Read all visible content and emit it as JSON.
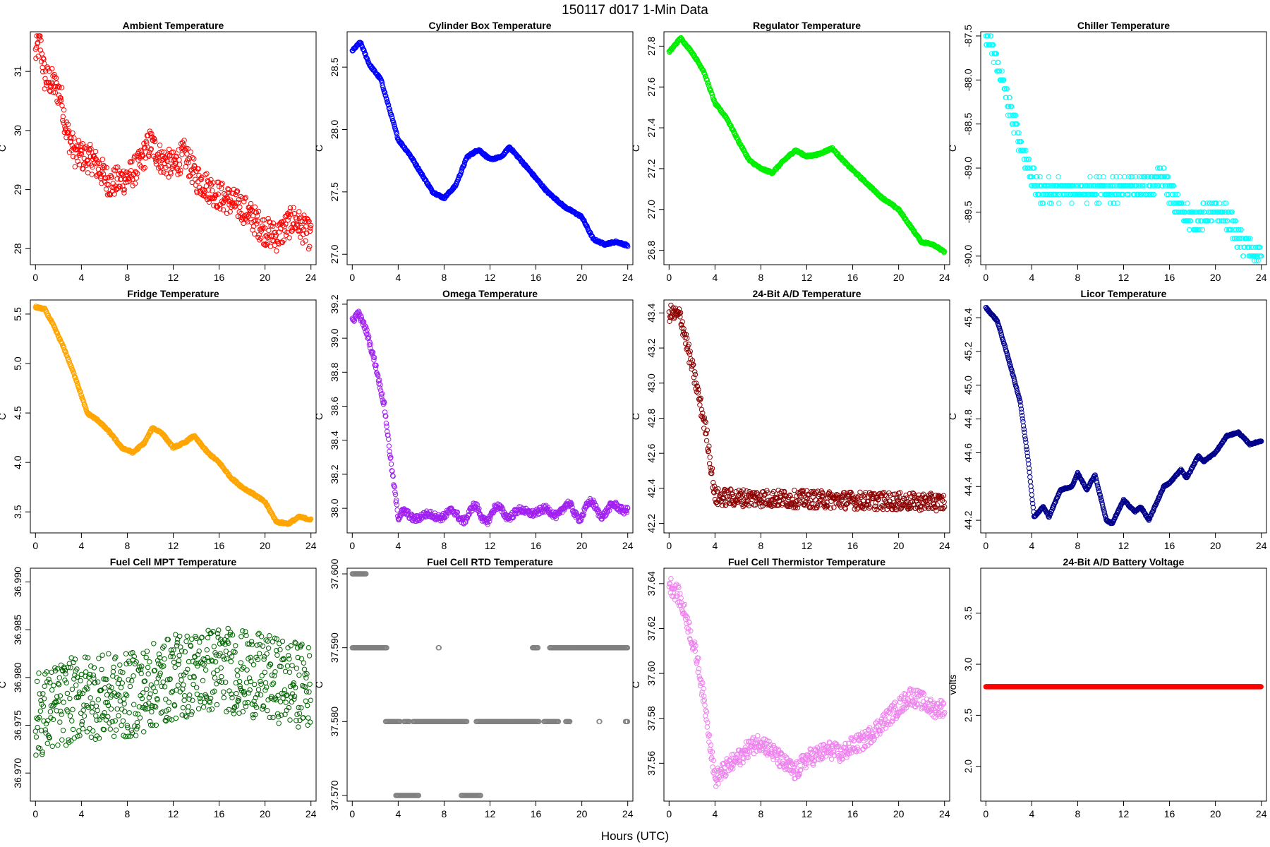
{
  "figure": {
    "title": "150117   d017   1-Min Data",
    "xlabel": "Hours (UTC)"
  },
  "chart_data": [
    {
      "type": "scatter",
      "title": "Ambient Temperature",
      "ylabel": "C",
      "color": "#ff0000",
      "xlim": [
        0,
        24
      ],
      "ylim": [
        27.8,
        31.6
      ],
      "xticks": [
        0,
        4,
        8,
        12,
        16,
        20,
        24
      ],
      "yticks": [
        28,
        29,
        30,
        31
      ],
      "ytick_labels": [
        "28",
        "29",
        "30",
        "31"
      ],
      "noise": 0.25,
      "series": [
        [
          0,
          31.3
        ],
        [
          0.4,
          31.5
        ],
        [
          0.8,
          30.9
        ],
        [
          1.5,
          30.8
        ],
        [
          2.2,
          30.6
        ],
        [
          2.7,
          30.0
        ],
        [
          3.5,
          29.6
        ],
        [
          5,
          29.5
        ],
        [
          6.5,
          29.1
        ],
        [
          8,
          29.2
        ],
        [
          9,
          29.4
        ],
        [
          10,
          29.8
        ],
        [
          11,
          29.5
        ],
        [
          12,
          29.4
        ],
        [
          13,
          29.6
        ],
        [
          14,
          29.2
        ],
        [
          16,
          28.9
        ],
        [
          18,
          28.7
        ],
        [
          20,
          28.3
        ],
        [
          21,
          28.2
        ],
        [
          22.5,
          28.5
        ],
        [
          24,
          28.2
        ]
      ]
    },
    {
      "type": "scatter",
      "title": "Cylinder Box Temperature",
      "ylabel": "C",
      "color": "#0000ff",
      "xlim": [
        0,
        24
      ],
      "ylim": [
        26.95,
        28.75
      ],
      "xticks": [
        0,
        4,
        8,
        12,
        16,
        20,
        24
      ],
      "yticks": [
        27.0,
        27.5,
        28.0,
        28.5
      ],
      "ytick_labels": [
        "27.0",
        "27.5",
        "28.0",
        "28.5"
      ],
      "noise": 0.008,
      "series": [
        [
          0,
          28.63
        ],
        [
          0.7,
          28.7
        ],
        [
          1.5,
          28.52
        ],
        [
          2.5,
          28.4
        ],
        [
          4,
          27.92
        ],
        [
          5,
          27.8
        ],
        [
          6,
          27.65
        ],
        [
          7,
          27.5
        ],
        [
          8,
          27.45
        ],
        [
          9,
          27.55
        ],
        [
          10,
          27.78
        ],
        [
          11,
          27.84
        ],
        [
          12,
          27.76
        ],
        [
          13,
          27.78
        ],
        [
          13.7,
          27.86
        ],
        [
          15,
          27.72
        ],
        [
          17,
          27.5
        ],
        [
          18.5,
          27.38
        ],
        [
          20,
          27.3
        ],
        [
          21,
          27.12
        ],
        [
          22,
          27.08
        ],
        [
          23,
          27.1
        ],
        [
          24,
          27.07
        ]
      ]
    },
    {
      "type": "scatter",
      "title": "Regulator Temperature",
      "ylabel": "C",
      "color": "#00ee00",
      "xlim": [
        0,
        24
      ],
      "ylim": [
        26.75,
        27.85
      ],
      "xticks": [
        0,
        4,
        8,
        12,
        16,
        20,
        24
      ],
      "yticks": [
        26.8,
        27.0,
        27.2,
        27.4,
        27.6,
        27.8
      ],
      "ytick_labels": [
        "26.8",
        "27.0",
        "27.2",
        "27.4",
        "27.6",
        "27.8"
      ],
      "noise": 0.005,
      "series": [
        [
          0,
          27.77
        ],
        [
          1,
          27.84
        ],
        [
          2,
          27.77
        ],
        [
          3,
          27.68
        ],
        [
          4,
          27.52
        ],
        [
          5,
          27.45
        ],
        [
          6,
          27.34
        ],
        [
          7,
          27.24
        ],
        [
          8,
          27.2
        ],
        [
          9,
          27.18
        ],
        [
          10,
          27.24
        ],
        [
          11,
          27.29
        ],
        [
          12,
          27.26
        ],
        [
          13,
          27.27
        ],
        [
          14.2,
          27.3
        ],
        [
          15.5,
          27.22
        ],
        [
          17,
          27.14
        ],
        [
          18.5,
          27.06
        ],
        [
          20,
          27.0
        ],
        [
          21,
          26.92
        ],
        [
          22,
          26.84
        ],
        [
          23,
          26.83
        ],
        [
          24,
          26.79
        ]
      ]
    },
    {
      "type": "scatter",
      "title": "Chiller Temperature",
      "ylabel": "C",
      "color": "#00ffff",
      "xlim": [
        0,
        24
      ],
      "ylim": [
        -90.05,
        -87.5
      ],
      "xticks": [
        0,
        4,
        8,
        12,
        16,
        20,
        24
      ],
      "yticks": [
        -90.0,
        -89.5,
        -89.0,
        -88.5,
        -88.0,
        -87.5
      ],
      "ytick_labels": [
        "-90.0",
        "-89.5",
        "-89.0",
        "-88.5",
        "-88.0",
        "-87.5"
      ],
      "noise": 0.12,
      "step": 0.1,
      "series": [
        [
          0,
          -87.5
        ],
        [
          1,
          -87.8
        ],
        [
          2,
          -88.3
        ],
        [
          3,
          -88.7
        ],
        [
          4,
          -89.1
        ],
        [
          4.5,
          -89.25
        ],
        [
          8,
          -89.25
        ],
        [
          12,
          -89.25
        ],
        [
          14,
          -89.2
        ],
        [
          15.5,
          -89.1
        ],
        [
          16.5,
          -89.4
        ],
        [
          18,
          -89.6
        ],
        [
          20,
          -89.5
        ],
        [
          21,
          -89.55
        ],
        [
          22,
          -89.8
        ],
        [
          23.5,
          -90.0
        ],
        [
          24,
          -89.95
        ]
      ]
    },
    {
      "type": "scatter",
      "title": "Fridge Temperature",
      "ylabel": "C",
      "color": "#ffa500",
      "xlim": [
        0,
        24
      ],
      "ylim": [
        3.33,
        5.6
      ],
      "xticks": [
        0,
        4,
        8,
        12,
        16,
        20,
        24
      ],
      "yticks": [
        3.5,
        4.0,
        4.5,
        5.0,
        5.5
      ],
      "ytick_labels": [
        "3.5",
        "4.0",
        "4.5",
        "5.0",
        "5.5"
      ],
      "noise": 0.01,
      "series": [
        [
          0,
          5.57
        ],
        [
          0.8,
          5.55
        ],
        [
          1.5,
          5.4
        ],
        [
          2.5,
          5.15
        ],
        [
          3.5,
          4.85
        ],
        [
          4.5,
          4.5
        ],
        [
          5.5,
          4.42
        ],
        [
          6.5,
          4.3
        ],
        [
          7.5,
          4.15
        ],
        [
          8.5,
          4.1
        ],
        [
          9.5,
          4.2
        ],
        [
          10.2,
          4.35
        ],
        [
          11,
          4.3
        ],
        [
          12,
          4.15
        ],
        [
          13,
          4.2
        ],
        [
          13.8,
          4.27
        ],
        [
          15,
          4.1
        ],
        [
          16,
          4.0
        ],
        [
          17,
          3.85
        ],
        [
          18,
          3.75
        ],
        [
          19,
          3.68
        ],
        [
          20,
          3.6
        ],
        [
          21,
          3.4
        ],
        [
          22,
          3.38
        ],
        [
          23,
          3.45
        ],
        [
          24,
          3.42
        ]
      ]
    },
    {
      "type": "scatter",
      "title": "Omega Temperature",
      "ylabel": "C",
      "color": "#a020f0",
      "xlim": [
        0,
        24
      ],
      "ylim": [
        37.88,
        39.2
      ],
      "xticks": [
        0,
        4,
        8,
        12,
        16,
        20,
        24
      ],
      "yticks": [
        38.0,
        38.2,
        38.4,
        38.6,
        38.8,
        39.0,
        39.2
      ],
      "ytick_labels": [
        "38.0",
        "38.2",
        "38.4",
        "38.6",
        "38.8",
        "39.0",
        "39.2"
      ],
      "noise": 0.02,
      "wave": 0.05,
      "series": [
        [
          0,
          39.1
        ],
        [
          0.5,
          39.15
        ],
        [
          1.2,
          39.05
        ],
        [
          2,
          38.85
        ],
        [
          2.8,
          38.6
        ],
        [
          3.5,
          38.2
        ],
        [
          4,
          37.95
        ],
        [
          24,
          38.0
        ]
      ]
    },
    {
      "type": "scatter",
      "title": "24-Bit A/D Temperature",
      "ylabel": "C",
      "color": "#8b0000",
      "xlim": [
        0,
        24
      ],
      "ylim": [
        42.17,
        43.45
      ],
      "xticks": [
        0,
        4,
        8,
        12,
        16,
        20,
        24
      ],
      "yticks": [
        42.2,
        42.4,
        42.6,
        42.8,
        43.0,
        43.2,
        43.4
      ],
      "ytick_labels": [
        "42.2",
        "42.4",
        "42.6",
        "42.8",
        "43.0",
        "43.2",
        "43.4"
      ],
      "noise": 0.05,
      "series": [
        [
          0,
          43.4
        ],
        [
          1,
          43.38
        ],
        [
          1.8,
          43.15
        ],
        [
          2.5,
          42.95
        ],
        [
          3.3,
          42.7
        ],
        [
          4,
          42.35
        ],
        [
          24,
          42.32
        ]
      ]
    },
    {
      "type": "scatter",
      "title": "Licor Temperature",
      "ylabel": "C",
      "color": "#00008b",
      "xlim": [
        0,
        24
      ],
      "ylim": [
        44.15,
        45.48
      ],
      "xticks": [
        0,
        4,
        8,
        12,
        16,
        20,
        24
      ],
      "yticks": [
        44.2,
        44.4,
        44.6,
        44.8,
        45.0,
        45.2,
        45.4
      ],
      "ytick_labels": [
        "44.2",
        "44.4",
        "44.6",
        "44.8",
        "45.0",
        "45.2",
        "45.4"
      ],
      "noise": 0.004,
      "series": [
        [
          0,
          45.46
        ],
        [
          1,
          45.38
        ],
        [
          2,
          45.15
        ],
        [
          3,
          44.9
        ],
        [
          3.7,
          44.55
        ],
        [
          4.2,
          44.22
        ],
        [
          5,
          44.28
        ],
        [
          5.5,
          44.22
        ],
        [
          6.5,
          44.38
        ],
        [
          7.5,
          44.4
        ],
        [
          8,
          44.48
        ],
        [
          8.8,
          44.38
        ],
        [
          9.5,
          44.47
        ],
        [
          10.5,
          44.2
        ],
        [
          11,
          44.18
        ],
        [
          12,
          44.32
        ],
        [
          13,
          44.25
        ],
        [
          13.5,
          44.28
        ],
        [
          14.2,
          44.2
        ],
        [
          15.5,
          44.4
        ],
        [
          16,
          44.42
        ],
        [
          17,
          44.5
        ],
        [
          17.5,
          44.45
        ],
        [
          18.5,
          44.58
        ],
        [
          19,
          44.55
        ],
        [
          20,
          44.6
        ],
        [
          21,
          44.7
        ],
        [
          22,
          44.72
        ],
        [
          23,
          44.65
        ],
        [
          24,
          44.67
        ]
      ]
    },
    {
      "type": "scatter",
      "title": "Fuel Cell MPT Temperature",
      "ylabel": "C",
      "color": "#006400",
      "xlim": [
        0,
        24
      ],
      "ylim": [
        36.9675,
        36.991
      ],
      "xticks": [
        0,
        4,
        8,
        12,
        16,
        20,
        24
      ],
      "yticks": [
        36.97,
        36.975,
        36.98,
        36.985,
        36.99
      ],
      "ytick_labels": [
        "36.970",
        "36.975",
        "36.980",
        "36.985",
        "36.990"
      ],
      "noise": 0.0045,
      "sparse": true,
      "series": [
        [
          0,
          36.976
        ],
        [
          4,
          36.978
        ],
        [
          8,
          36.978
        ],
        [
          12,
          36.98
        ],
        [
          16,
          36.981
        ],
        [
          20,
          36.98
        ],
        [
          24,
          36.979
        ]
      ]
    },
    {
      "type": "scatter",
      "title": "Fuel Cell RTD Temperature",
      "ylabel": "C",
      "color": "#808080",
      "xlim": [
        0,
        24
      ],
      "ylim": [
        37.5698,
        37.6002
      ],
      "xticks": [
        0,
        4,
        8,
        12,
        16,
        20,
        24
      ],
      "yticks": [
        37.57,
        37.58,
        37.59,
        37.6
      ],
      "ytick_labels": [
        "37.570",
        "37.580",
        "37.590",
        "37.600"
      ],
      "noise": 0,
      "levels": [
        {
          "y": 37.6,
          "ranges": [
            [
              0,
              1.2
            ]
          ]
        },
        {
          "y": 37.59,
          "ranges": [
            [
              0,
              3
            ],
            [
              7.5,
              7.6
            ],
            [
              15.7,
              16.2
            ],
            [
              17.2,
              24
            ]
          ]
        },
        {
          "y": 37.58,
          "ranges": [
            [
              2.9,
              4.2
            ],
            [
              4.5,
              5
            ],
            [
              5.3,
              10
            ],
            [
              10.8,
              16.3
            ],
            [
              16.7,
              18
            ],
            [
              18.6,
              19
            ],
            [
              21.5,
              21.6
            ],
            [
              23.8,
              24
            ]
          ]
        },
        {
          "y": 37.57,
          "ranges": [
            [
              3.8,
              5.8
            ],
            [
              9.5,
              11.2
            ]
          ]
        }
      ]
    },
    {
      "type": "scatter",
      "title": "Fuel Cell Thermistor Temperature",
      "ylabel": "C",
      "color": "#ee82ee",
      "xlim": [
        0,
        24
      ],
      "ylim": [
        37.545,
        37.645
      ],
      "xticks": [
        0,
        4,
        8,
        12,
        16,
        20,
        24
      ],
      "yticks": [
        37.56,
        37.58,
        37.6,
        37.62,
        37.64
      ],
      "ytick_labels": [
        "37.56",
        "37.58",
        "37.60",
        "37.62",
        "37.64"
      ],
      "noise": 0.004,
      "series": [
        [
          0,
          37.64
        ],
        [
          0.8,
          37.635
        ],
        [
          1.5,
          37.625
        ],
        [
          2.5,
          37.605
        ],
        [
          3.3,
          37.58
        ],
        [
          4,
          37.553
        ],
        [
          5,
          37.558
        ],
        [
          6,
          37.562
        ],
        [
          7,
          37.567
        ],
        [
          8,
          37.57
        ],
        [
          9,
          37.565
        ],
        [
          10,
          37.56
        ],
        [
          11,
          37.556
        ],
        [
          12,
          37.562
        ],
        [
          13,
          37.564
        ],
        [
          14,
          37.566
        ],
        [
          15,
          37.564
        ],
        [
          16,
          37.568
        ],
        [
          17,
          37.57
        ],
        [
          18,
          37.575
        ],
        [
          19,
          37.58
        ],
        [
          20,
          37.585
        ],
        [
          21,
          37.59
        ],
        [
          22,
          37.588
        ],
        [
          23,
          37.584
        ],
        [
          24,
          37.585
        ]
      ]
    },
    {
      "type": "scatter",
      "title": "24-Bit A/D Battery Voltage",
      "ylabel": "volts",
      "color": "#ff0000",
      "xlim": [
        0,
        24
      ],
      "ylim": [
        1.7,
        3.9
      ],
      "xticks": [
        0,
        4,
        8,
        12,
        16,
        20,
        24
      ],
      "yticks": [
        2.0,
        2.5,
        3.0,
        3.5
      ],
      "ytick_labels": [
        "2.0",
        "2.5",
        "3.0",
        "3.5"
      ],
      "noise": 0,
      "dense": true,
      "series": [
        [
          0,
          2.78
        ],
        [
          24,
          2.78
        ]
      ]
    }
  ]
}
